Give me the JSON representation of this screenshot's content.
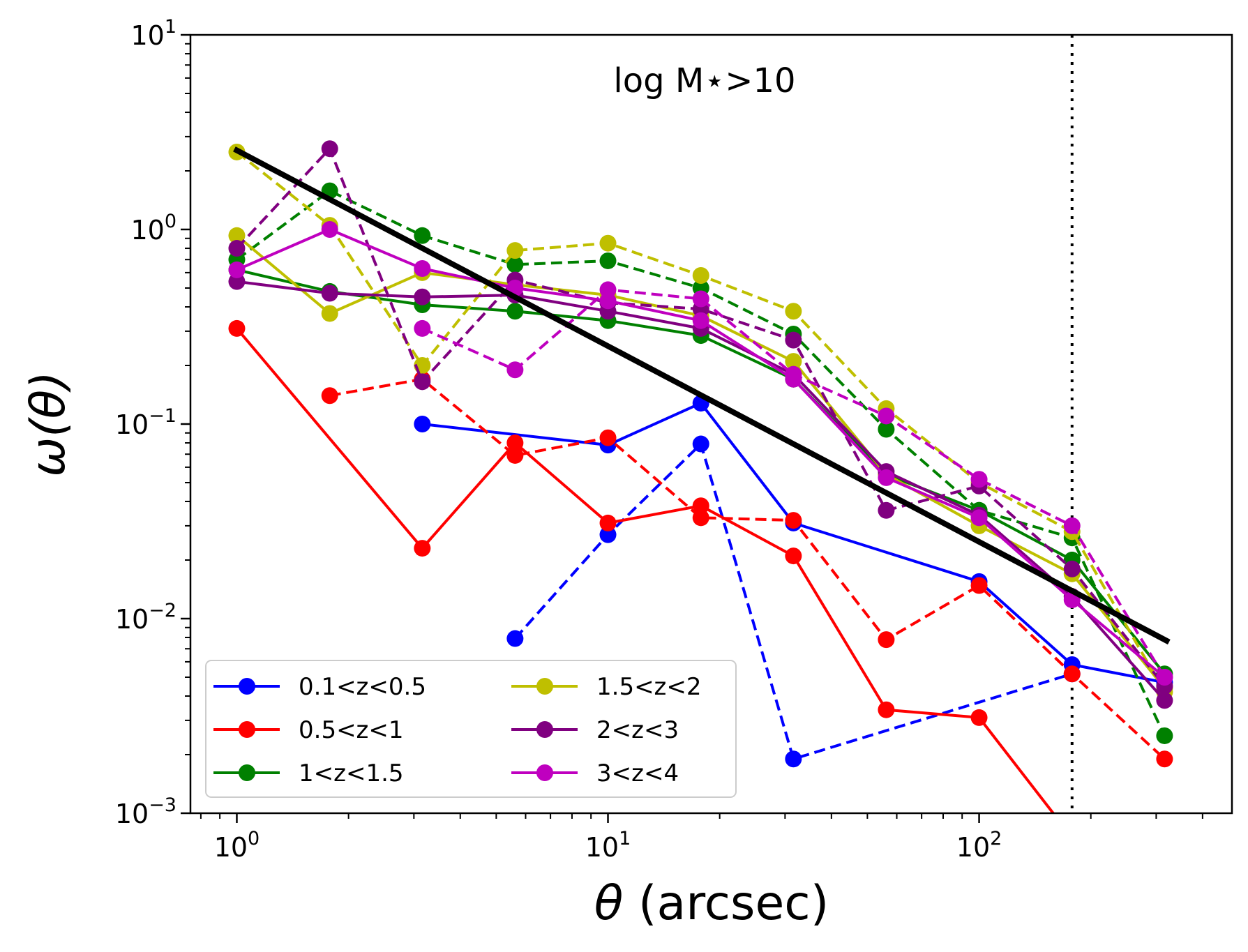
{
  "chart_data": {
    "type": "line",
    "annotation": "log M⋆>10",
    "xlabel": {
      "symbol": "θ",
      "text": " (arcsec)"
    },
    "ylabel": "ω(θ)",
    "xscale": "log",
    "yscale": "log",
    "xlim": [
      0.75,
      480
    ],
    "ylim": [
      0.001,
      10
    ],
    "xticks": [
      {
        "value": 1,
        "base": "10",
        "exp": "0"
      },
      {
        "value": 10,
        "base": "10",
        "exp": "1"
      },
      {
        "value": 100,
        "base": "10",
        "exp": "2"
      }
    ],
    "yticks": [
      {
        "value": 0.001,
        "base": "10",
        "exp": "−3"
      },
      {
        "value": 0.01,
        "base": "10",
        "exp": "−2"
      },
      {
        "value": 0.1,
        "base": "10",
        "exp": "−1"
      },
      {
        "value": 1,
        "base": "10",
        "exp": "0"
      },
      {
        "value": 10,
        "base": "10",
        "exp": "1"
      }
    ],
    "grid": false,
    "legend_position": "lower-left",
    "legend_columns": 2,
    "vertical_line": {
      "x": 178,
      "style": "dotted",
      "color": "#000000"
    },
    "fit_line": {
      "x": [
        1,
        320
      ],
      "y": [
        2.55,
        0.0077
      ],
      "color": "#000000"
    },
    "series": [
      {
        "name": "0.1<z<0.5",
        "color": "#0000ff",
        "style": "solid",
        "in_legend": true,
        "x": [
          3.16,
          10,
          17.8,
          31.6,
          100,
          178,
          316
        ],
        "y": [
          0.1,
          0.078,
          0.128,
          0.031,
          0.0155,
          0.0058,
          0.0047
        ]
      },
      {
        "name": "",
        "color": "#0000ff",
        "style": "dashed",
        "in_legend": false,
        "x": [
          5.62,
          10,
          17.8,
          31.6,
          178
        ],
        "y": [
          0.0079,
          0.027,
          0.079,
          0.0019,
          0.0052
        ]
      },
      {
        "name": "0.5<z<1",
        "color": "#ff0000",
        "style": "solid",
        "in_legend": true,
        "x": [
          1,
          3.16,
          5.62,
          10,
          17.8,
          31.6,
          56.2,
          100,
          178
        ],
        "y": [
          0.31,
          0.023,
          0.08,
          0.031,
          0.038,
          0.021,
          0.0034,
          0.0031,
          0.00075
        ]
      },
      {
        "name": "",
        "color": "#ff0000",
        "style": "dashed",
        "in_legend": false,
        "x": [
          1.78,
          3.16,
          5.62,
          10,
          17.8,
          31.6,
          56.2,
          100,
          178,
          316
        ],
        "y": [
          0.14,
          0.17,
          0.069,
          0.085,
          0.033,
          0.032,
          0.0078,
          0.0148,
          0.0052,
          0.0019
        ]
      },
      {
        "name": "1<z<1.5",
        "color": "#008000",
        "style": "solid",
        "in_legend": true,
        "x": [
          1,
          1.78,
          3.16,
          5.62,
          10,
          17.8,
          31.6,
          56.2,
          100,
          178,
          316
        ],
        "y": [
          0.62,
          0.48,
          0.41,
          0.38,
          0.34,
          0.285,
          0.17,
          0.055,
          0.036,
          0.02,
          0.0052
        ]
      },
      {
        "name": "",
        "color": "#008000",
        "style": "dashed",
        "in_legend": false,
        "x": [
          1,
          1.78,
          3.16,
          5.62,
          10,
          17.8,
          31.6,
          56.2,
          100,
          178,
          316
        ],
        "y": [
          0.7,
          1.58,
          0.93,
          0.66,
          0.69,
          0.5,
          0.29,
          0.094,
          0.036,
          0.026,
          0.0025
        ]
      },
      {
        "name": "1.5<z<2",
        "color": "#bfbf00",
        "style": "solid",
        "in_legend": true,
        "x": [
          1,
          1.78,
          3.16,
          5.62,
          10,
          17.8,
          31.6,
          56.2,
          100,
          178,
          316
        ],
        "y": [
          0.93,
          0.37,
          0.6,
          0.52,
          0.46,
          0.36,
          0.21,
          0.055,
          0.03,
          0.017,
          0.0044
        ]
      },
      {
        "name": "",
        "color": "#bfbf00",
        "style": "dashed",
        "in_legend": false,
        "x": [
          1,
          1.78,
          3.16,
          5.62,
          10,
          17.8,
          31.6,
          56.2,
          100,
          178,
          316
        ],
        "y": [
          2.5,
          1.05,
          0.2,
          0.78,
          0.85,
          0.58,
          0.38,
          0.12,
          0.05,
          0.028,
          0.0042
        ]
      },
      {
        "name": "2<z<3",
        "color": "#800080",
        "style": "solid",
        "in_legend": true,
        "x": [
          1,
          1.78,
          3.16,
          5.62,
          10,
          17.8,
          31.6,
          56.2,
          100,
          178,
          316
        ],
        "y": [
          0.54,
          0.47,
          0.45,
          0.46,
          0.38,
          0.31,
          0.18,
          0.057,
          0.034,
          0.013,
          0.0038
        ]
      },
      {
        "name": "",
        "color": "#800080",
        "style": "dashed",
        "in_legend": false,
        "x": [
          1,
          1.78,
          3.16,
          5.62,
          10,
          17.8,
          31.6,
          56.2,
          100,
          178,
          316
        ],
        "y": [
          0.8,
          2.6,
          0.165,
          0.55,
          0.42,
          0.39,
          0.27,
          0.036,
          0.048,
          0.018,
          0.0045
        ]
      },
      {
        "name": "3<z<4",
        "color": "#bf00bf",
        "style": "solid",
        "in_legend": true,
        "x": [
          1,
          1.78,
          3.16,
          5.62,
          10,
          17.8,
          31.6,
          56.2,
          100,
          178,
          316
        ],
        "y": [
          0.62,
          1.0,
          0.63,
          0.5,
          0.43,
          0.34,
          0.17,
          0.053,
          0.033,
          0.0125,
          0.005
        ]
      },
      {
        "name": "",
        "color": "#bf00bf",
        "style": "dashed",
        "in_legend": false,
        "x": [
          3.16,
          5.62,
          10,
          17.8,
          31.6,
          56.2,
          100,
          178,
          316
        ],
        "y": [
          0.31,
          0.19,
          0.49,
          0.44,
          0.18,
          0.11,
          0.052,
          0.03,
          0.005
        ]
      }
    ]
  }
}
